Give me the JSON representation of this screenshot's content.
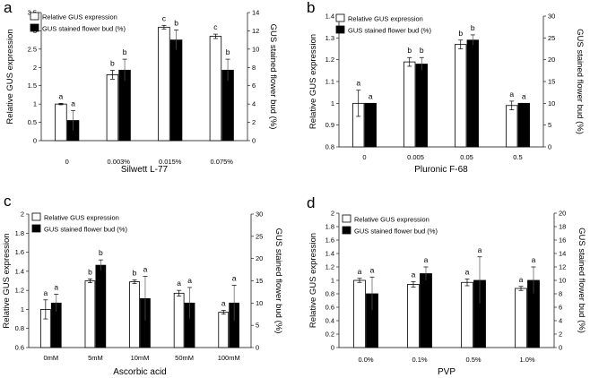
{
  "colors": {
    "left_bar_fill": "#ffffff",
    "right_bar_fill": "#000000",
    "stroke": "#000000"
  },
  "chart_data": [
    {
      "panel": "a",
      "type": "bar",
      "categories": [
        "0",
        "0.003%",
        "0.015%",
        "0.075%"
      ],
      "xlabel": "Silwett L-77",
      "ylabel": "Relative GUS expression",
      "ylabel2": "GUS stained flower bud (%)",
      "ylim": [
        0,
        3.5
      ],
      "ystep": 0.5,
      "ytick_labels": [
        "0",
        "0.5",
        "1",
        "1.5",
        "2",
        "2.5",
        "3",
        "3.5"
      ],
      "y2lim": [
        0,
        14
      ],
      "y2step": 2,
      "y2tick_labels": [
        "0",
        "2",
        "4",
        "6",
        "8",
        "10",
        "12",
        "14"
      ],
      "series": [
        {
          "name": "Relative GUS expression",
          "axis": "left",
          "values": [
            1.0,
            1.8,
            3.1,
            2.85
          ],
          "errors": [
            0.02,
            0.12,
            0.05,
            0.06
          ],
          "letters": [
            "a",
            "b",
            "c",
            "c"
          ]
        },
        {
          "name": "GUS stained flower bud (%)",
          "axis": "right",
          "values": [
            2.2,
            7.7,
            11.0,
            7.7
          ],
          "errors": [
            1.1,
            1.2,
            1.1,
            1.2
          ],
          "letters": [
            "a",
            "b",
            "b",
            "b"
          ]
        }
      ]
    },
    {
      "panel": "b",
      "type": "bar",
      "categories": [
        "0",
        "0.005",
        "0.05",
        "0.5"
      ],
      "xlabel": "Pluronic F-68",
      "ylabel": "Relative GUS expression",
      "ylabel2": "GUS stained flower bud (%)",
      "ylim": [
        0.8,
        1.4
      ],
      "ystep": 0.1,
      "ytick_labels": [
        "0.8",
        "0.9",
        "1",
        "1.1",
        "1.2",
        "1.3",
        "1.4"
      ],
      "y2lim": [
        0,
        30
      ],
      "y2step": 5,
      "y2tick_labels": [
        "0",
        "5",
        "10",
        "15",
        "20",
        "25",
        "30"
      ],
      "series": [
        {
          "name": "Relative GUS expression",
          "axis": "left",
          "values": [
            1.0,
            1.19,
            1.27,
            0.99
          ],
          "errors": [
            0.06,
            0.02,
            0.02,
            0.02
          ],
          "letters": [
            "a",
            "b",
            "b",
            "a"
          ]
        },
        {
          "name": "GUS stained flower bud (%)",
          "axis": "right",
          "values": [
            10.0,
            19.0,
            24.5,
            10.0
          ],
          "errors": [
            0.0,
            1.5,
            1.2,
            0.0
          ],
          "letters": [
            "a",
            "b",
            "b",
            "a"
          ]
        }
      ]
    },
    {
      "panel": "c",
      "type": "bar",
      "categories": [
        "0mM",
        "5mM",
        "10mM",
        "50mM",
        "100mM"
      ],
      "xlabel": "Ascorbic acid",
      "ylabel": "Relative GUS expression",
      "ylabel2": "GUS stained flower bud (%)",
      "ylim": [
        0.6,
        2.0
      ],
      "ystep": 0.2,
      "ytick_labels": [
        "0.6",
        "0.8",
        "1",
        "1.2",
        "1.4",
        "1.6",
        "1.8",
        "2"
      ],
      "y2lim": [
        0,
        30
      ],
      "y2step": 5,
      "y2tick_labels": [
        "0",
        "5",
        "10",
        "15",
        "20",
        "25",
        "30"
      ],
      "series": [
        {
          "name": "Relative GUS expression",
          "axis": "left",
          "values": [
            1.0,
            1.3,
            1.29,
            1.17,
            0.97
          ],
          "errors": [
            0.1,
            0.02,
            0.02,
            0.03,
            0.02
          ],
          "letters": [
            "a",
            "b",
            "b",
            "a",
            "a"
          ]
        },
        {
          "name": "GUS stained flower bud (%)",
          "axis": "right",
          "values": [
            10.0,
            18.5,
            11.0,
            10.0,
            10.0
          ],
          "errors": [
            2.0,
            1.2,
            5.0,
            3.5,
            4.0
          ],
          "letters": [
            "a",
            "b",
            "a",
            "a",
            "a"
          ]
        }
      ]
    },
    {
      "panel": "d",
      "type": "bar",
      "categories": [
        "0.0%",
        "0.1%",
        "0.5%",
        "1.0%"
      ],
      "xlabel": "PVP",
      "ylabel": "Relative GUS expression",
      "ylabel2": "GUS stained flower bud (%)",
      "ylim": [
        0,
        2.0
      ],
      "ystep": 0.2,
      "ytick_labels": [
        "0",
        "0.2",
        "0.4",
        "0.6",
        "0.8",
        "1",
        "1.2",
        "1.4",
        "1.6",
        "1.8",
        "2"
      ],
      "y2lim": [
        0,
        20
      ],
      "y2step": 2,
      "y2tick_labels": [
        "0",
        "2",
        "4",
        "6",
        "8",
        "10",
        "12",
        "14",
        "16",
        "18",
        "20"
      ],
      "series": [
        {
          "name": "Relative GUS expression",
          "axis": "left",
          "values": [
            1.0,
            0.94,
            0.97,
            0.88
          ],
          "errors": [
            0.03,
            0.04,
            0.05,
            0.03
          ],
          "letters": [
            "a",
            "a",
            "a",
            "a"
          ]
        },
        {
          "name": "GUS stained flower bud (%)",
          "axis": "right",
          "values": [
            8.0,
            11.0,
            10.0,
            10.0
          ],
          "errors": [
            2.5,
            1.0,
            3.5,
            2.0
          ],
          "letters": [
            "a",
            "a",
            "a",
            "a"
          ]
        }
      ]
    }
  ]
}
